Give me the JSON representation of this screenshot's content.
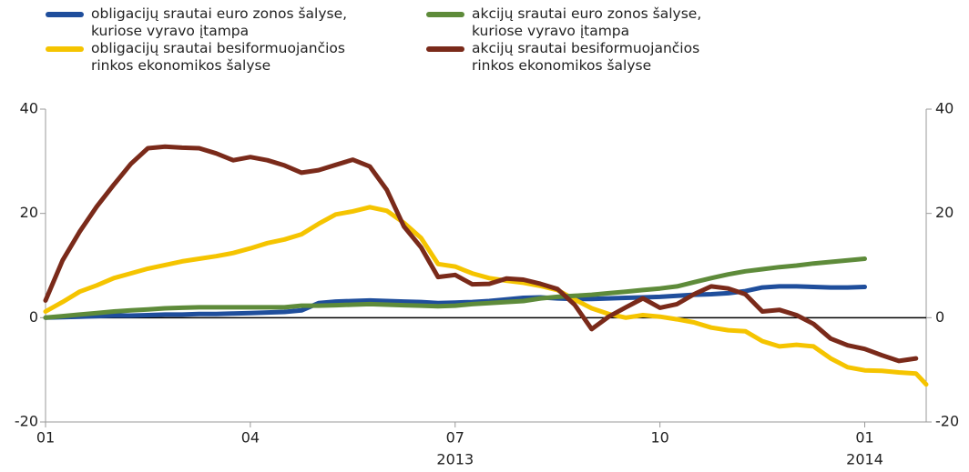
{
  "chart_data": {
    "type": "line",
    "x": [
      0,
      0.25,
      0.5,
      0.75,
      1,
      1.25,
      1.5,
      1.75,
      2,
      2.25,
      2.5,
      2.75,
      3,
      3.25,
      3.5,
      3.75,
      4,
      4.25,
      4.5,
      4.75,
      5,
      5.25,
      5.5,
      5.75,
      6,
      6.25,
      6.5,
      6.75,
      7,
      7.25,
      7.5,
      7.75,
      8,
      8.25,
      8.5,
      8.75,
      9,
      9.25,
      9.5,
      9.75,
      10,
      10.25,
      10.5,
      10.75,
      11,
      11.25,
      11.5,
      11.75,
      12,
      12.25,
      12.5,
      12.75,
      12.9
    ],
    "series": [
      {
        "name": "obligacijų srautai euro zonos šalyse,\nkuriose vyravo įtampa",
        "color": "#1f4e9c",
        "values": [
          0,
          0.1,
          0.2,
          0.3,
          0.4,
          0.4,
          0.5,
          0.6,
          0.6,
          0.7,
          0.7,
          0.8,
          0.9,
          1.0,
          1.1,
          1.4,
          2.8,
          3.1,
          3.2,
          3.3,
          3.2,
          3.1,
          3.0,
          2.8,
          2.9,
          3.0,
          3.2,
          3.5,
          3.8,
          3.9,
          3.7,
          3.6,
          3.6,
          3.7,
          3.8,
          3.9,
          4.0,
          4.2,
          4.4,
          4.5,
          4.7,
          5.1,
          5.8,
          6.0,
          6.0,
          5.9,
          5.8,
          5.8,
          5.9,
          null,
          null,
          null,
          null
        ]
      },
      {
        "name": "obligacijų srautai besiformuojančios\nrinkos ekonomikos šalyse",
        "color": "#f5c400",
        "values": [
          1.2,
          3,
          5,
          6.2,
          7.6,
          8.5,
          9.4,
          10.1,
          10.8,
          11.3,
          11.8,
          12.4,
          13.3,
          14.3,
          15,
          16,
          18,
          19.8,
          20.4,
          21.2,
          20.5,
          18.2,
          15.3,
          10.3,
          9.8,
          8.5,
          7.6,
          7.1,
          6.7,
          6.1,
          5.3,
          3.5,
          1.8,
          0.7,
          0,
          0.5,
          0.2,
          -0.3,
          -0.9,
          -1.9,
          -2.4,
          -2.6,
          -4.5,
          -5.5,
          -5.2,
          -5.5,
          -7.8,
          -9.5,
          -10.1,
          -10.2,
          -10.5,
          -10.7,
          -12.8
        ]
      },
      {
        "name": "akcijų srautai euro zonos šalyse,\nkuriose vyravo įtampa",
        "color": "#5e8b3a",
        "values": [
          0,
          0.3,
          0.6,
          0.9,
          1.2,
          1.4,
          1.6,
          1.8,
          1.9,
          2.0,
          2.0,
          2.0,
          2.0,
          2.0,
          2.0,
          2.3,
          2.3,
          2.4,
          2.5,
          2.6,
          2.5,
          2.4,
          2.3,
          2.2,
          2.3,
          2.6,
          2.8,
          3.0,
          3.2,
          3.7,
          4.0,
          4.2,
          4.4,
          4.7,
          5.0,
          5.3,
          5.6,
          6.0,
          6.8,
          7.6,
          8.3,
          8.9,
          9.3,
          9.7,
          10.0,
          10.4,
          10.7,
          11.0,
          11.3,
          null,
          null,
          null,
          null
        ]
      },
      {
        "name": "akcijų srautai besiformuojančios\nrinkos ekonomikos šalyse",
        "color": "#7a2a1a",
        "values": [
          3.3,
          11,
          16.5,
          21.3,
          25.5,
          29.5,
          32.5,
          32.8,
          32.6,
          32.5,
          31.5,
          30.2,
          30.8,
          30.2,
          29.2,
          27.8,
          28.3,
          29.3,
          30.3,
          29,
          24.5,
          17.5,
          13.5,
          7.8,
          8.2,
          6.4,
          6.5,
          7.5,
          7.3,
          6.5,
          5.5,
          2.5,
          -2.2,
          0.2,
          2,
          3.7,
          1.9,
          2.6,
          4.5,
          6,
          5.6,
          4.5,
          1.2,
          1.5,
          0.5,
          -1.2,
          -4,
          -5.3,
          -6,
          -7.2,
          -8.3,
          -7.8,
          null
        ]
      }
    ],
    "xlim": [
      0,
      12.9
    ],
    "xticks": [
      {
        "value": 0,
        "label": "01"
      },
      {
        "value": 3,
        "label": "04"
      },
      {
        "value": 6,
        "label": "07"
      },
      {
        "value": 9,
        "label": "10"
      },
      {
        "value": 12,
        "label": "01"
      }
    ],
    "x_year_labels": [
      {
        "value": 6,
        "label": "2013"
      },
      {
        "value": 12,
        "label": "2014"
      }
    ],
    "ylim": [
      -20,
      40
    ],
    "yticks": [
      -20,
      0,
      20,
      40
    ],
    "y2lim": [
      -20,
      40
    ],
    "y2ticks": [
      -20,
      0,
      20,
      40
    ]
  }
}
